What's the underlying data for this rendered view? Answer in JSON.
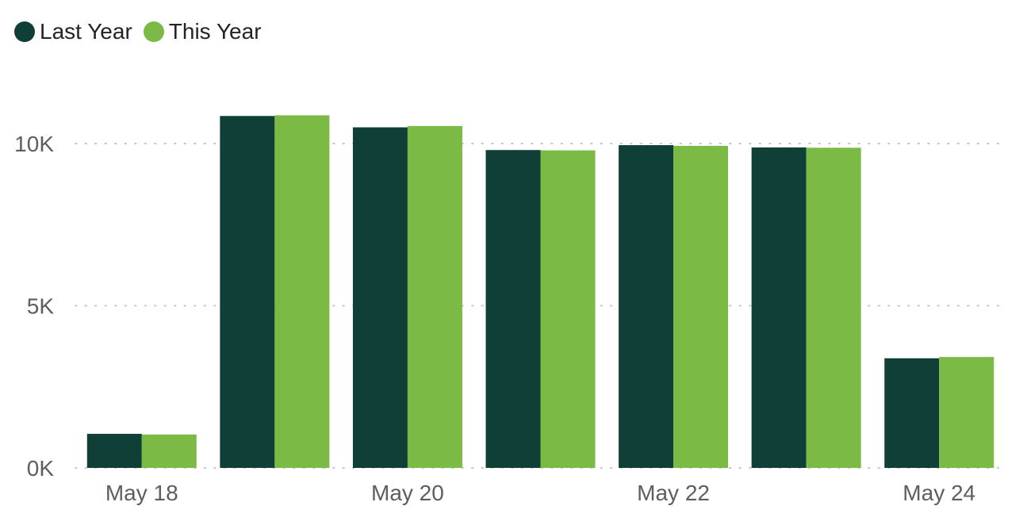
{
  "legend": {
    "items": [
      {
        "label": "Last Year",
        "color": "#0f3f36"
      },
      {
        "label": "This Year",
        "color": "#7aba45"
      }
    ]
  },
  "chart_data": {
    "type": "bar",
    "categories": [
      "May 18",
      "May 19",
      "May 20",
      "May 21",
      "May 22",
      "May 23",
      "May 24"
    ],
    "x_tick_labels": [
      "May 18",
      "",
      "May 20",
      "",
      "May 22",
      "",
      "May 24"
    ],
    "series": [
      {
        "name": "Last Year",
        "color": "#0f3f36",
        "values": [
          1050,
          10850,
          10500,
          9800,
          9950,
          9880,
          3380
        ]
      },
      {
        "name": "This Year",
        "color": "#7aba45",
        "values": [
          1030,
          10870,
          10540,
          9790,
          9930,
          9870,
          3420
        ]
      }
    ],
    "y_ticks": [
      0,
      5000,
      10000
    ],
    "y_tick_labels": [
      "0K",
      "5K",
      "10K"
    ],
    "ylim": [
      0,
      12000
    ],
    "grid": true,
    "legend_position": "top-left"
  }
}
